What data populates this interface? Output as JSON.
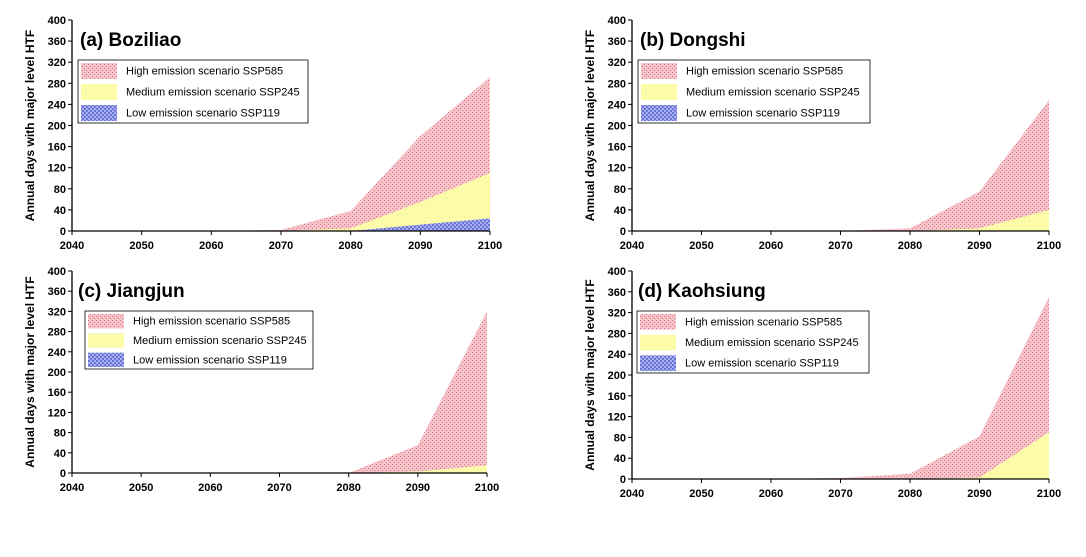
{
  "colors": {
    "high": "#f2a6b0",
    "medium": "#fcfc9c",
    "low": "#8a94e8"
  },
  "chart_data": [
    {
      "type": "area",
      "title": "(a) Boziliao",
      "ylabel": "Annual days with major level HTF",
      "x": [
        2040,
        2050,
        2060,
        2070,
        2080,
        2090,
        2100
      ],
      "xlim": [
        2040,
        2100
      ],
      "ylim": [
        0,
        400
      ],
      "yticks": [
        "0",
        "40",
        "80",
        "120",
        "160",
        "200",
        "240",
        "280",
        "320",
        "360",
        "400"
      ],
      "xticks": [
        "2040",
        "2050",
        "2060",
        "2070",
        "2080",
        "2090",
        "2100"
      ],
      "series": [
        {
          "name": "High emission scenario SSP585",
          "values": [
            0,
            0,
            0,
            2,
            38,
            180,
            292
          ]
        },
        {
          "name": "Medium emission scenario SSP245",
          "values": [
            0,
            0,
            0,
            0,
            5,
            55,
            110
          ]
        },
        {
          "name": "Low emission scenario SSP119",
          "values": [
            0,
            0,
            0,
            0,
            0,
            12,
            24
          ]
        }
      ]
    },
    {
      "type": "area",
      "title": "(b) Dongshi",
      "ylabel": "Annual days with major level HTF",
      "x": [
        2040,
        2050,
        2060,
        2070,
        2080,
        2090,
        2100
      ],
      "xlim": [
        2040,
        2100
      ],
      "ylim": [
        0,
        400
      ],
      "yticks": [
        "0",
        "40",
        "80",
        "120",
        "160",
        "200",
        "240",
        "280",
        "320",
        "360",
        "400"
      ],
      "xticks": [
        "2040",
        "2050",
        "2060",
        "2070",
        "2080",
        "2090",
        "2100"
      ],
      "series": [
        {
          "name": "High emission scenario SSP585",
          "values": [
            0,
            0,
            0,
            0,
            5,
            75,
            248
          ]
        },
        {
          "name": "Medium emission scenario SSP245",
          "values": [
            0,
            0,
            0,
            0,
            0,
            5,
            40
          ]
        },
        {
          "name": "Low emission scenario SSP119",
          "values": [
            0,
            0,
            0,
            0,
            0,
            0,
            0
          ]
        }
      ]
    },
    {
      "type": "area",
      "title": "(c) Jiangjun",
      "ylabel": "Annual days with major level HTF",
      "x": [
        2040,
        2050,
        2060,
        2070,
        2080,
        2090,
        2100
      ],
      "xlim": [
        2040,
        2100
      ],
      "ylim": [
        0,
        400
      ],
      "yticks": [
        "0",
        "40",
        "80",
        "120",
        "160",
        "200",
        "240",
        "280",
        "320",
        "360",
        "400"
      ],
      "xticks": [
        "2040",
        "2050",
        "2060",
        "2070",
        "2080",
        "2090",
        "2100"
      ],
      "series": [
        {
          "name": "High emission scenario SSP585",
          "values": [
            0,
            0,
            0,
            0,
            0,
            55,
            320
          ]
        },
        {
          "name": "Medium emission scenario SSP245",
          "values": [
            0,
            0,
            0,
            0,
            0,
            3,
            15
          ]
        },
        {
          "name": "Low emission scenario SSP119",
          "values": [
            0,
            0,
            0,
            0,
            0,
            0,
            0
          ]
        }
      ]
    },
    {
      "type": "area",
      "title": "(d) Kaohsiung",
      "ylabel": "Annual days with major level HTF",
      "x": [
        2040,
        2050,
        2060,
        2070,
        2080,
        2090,
        2100
      ],
      "xlim": [
        2040,
        2100
      ],
      "ylim": [
        0,
        400
      ],
      "yticks": [
        "0",
        "40",
        "80",
        "120",
        "160",
        "200",
        "240",
        "280",
        "320",
        "360",
        "400"
      ],
      "xticks": [
        "2040",
        "2050",
        "2060",
        "2070",
        "2080",
        "2090",
        "2100"
      ],
      "series": [
        {
          "name": "High emission scenario SSP585",
          "values": [
            0,
            0,
            0,
            2,
            10,
            82,
            350
          ]
        },
        {
          "name": "Medium emission scenario SSP245",
          "values": [
            0,
            0,
            0,
            0,
            0,
            3,
            90
          ]
        },
        {
          "name": "Low emission scenario SSP119",
          "values": [
            0,
            0,
            0,
            0,
            0,
            0,
            0
          ]
        }
      ]
    }
  ]
}
